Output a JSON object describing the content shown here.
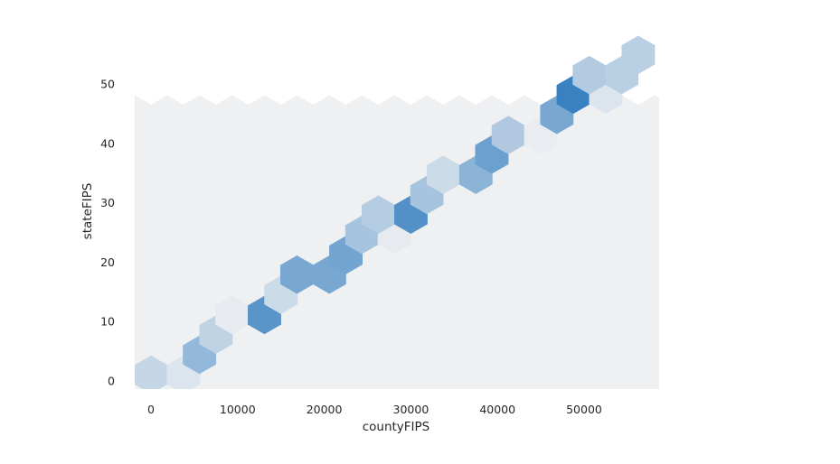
{
  "chart_data": {
    "type": "hexbin",
    "xlabel": "countyFIPS",
    "ylabel": "stateFIPS",
    "xlim": [
      -2000,
      58000
    ],
    "ylim": [
      -1,
      57
    ],
    "x_ticks": [
      0,
      10000,
      20000,
      30000,
      40000,
      50000
    ],
    "y_ticks": [
      0,
      10,
      20,
      30,
      40,
      50
    ],
    "x_tick_labels": [
      "0",
      "10000",
      "20000",
      "30000",
      "40000",
      "50000"
    ],
    "y_tick_labels": [
      "0",
      "10",
      "20",
      "30",
      "40",
      "50"
    ],
    "grid": false,
    "colormap": {
      "low": "#eff0f2",
      "high": "#2f7bbd"
    },
    "background_color": "#eff0f2",
    "bins": [
      {
        "x": 0,
        "y": 1.05,
        "intensity": 0.22
      },
      {
        "x": 3750,
        "y": 1.05,
        "intensity": 0.1
      },
      {
        "x": 5600,
        "y": 4.4,
        "intensity": 0.48
      },
      {
        "x": 7500,
        "y": 7.8,
        "intensity": 0.25
      },
      {
        "x": 9350,
        "y": 11.1,
        "intensity": 0.04
      },
      {
        "x": 13100,
        "y": 11.1,
        "intensity": 0.78
      },
      {
        "x": 15000,
        "y": 14.5,
        "intensity": 0.18
      },
      {
        "x": 16850,
        "y": 17.9,
        "intensity": 0.62
      },
      {
        "x": 20600,
        "y": 17.9,
        "intensity": 0.62
      },
      {
        "x": 22500,
        "y": 21.2,
        "intensity": 0.64
      },
      {
        "x": 24350,
        "y": 24.6,
        "intensity": 0.38
      },
      {
        "x": 28100,
        "y": 24.6,
        "intensity": 0.04
      },
      {
        "x": 26250,
        "y": 28.0,
        "intensity": 0.3
      },
      {
        "x": 30000,
        "y": 28.0,
        "intensity": 0.82
      },
      {
        "x": 31850,
        "y": 31.3,
        "intensity": 0.38
      },
      {
        "x": 33750,
        "y": 34.7,
        "intensity": 0.18
      },
      {
        "x": 37500,
        "y": 34.7,
        "intensity": 0.52
      },
      {
        "x": 39350,
        "y": 38.1,
        "intensity": 0.68
      },
      {
        "x": 41250,
        "y": 41.4,
        "intensity": 0.33
      },
      {
        "x": 45000,
        "y": 41.4,
        "intensity": 0.03
      },
      {
        "x": 46850,
        "y": 44.8,
        "intensity": 0.62
      },
      {
        "x": 48750,
        "y": 48.2,
        "intensity": 0.95
      },
      {
        "x": 52500,
        "y": 48.2,
        "intensity": 0.1
      },
      {
        "x": 50600,
        "y": 51.5,
        "intensity": 0.32
      },
      {
        "x": 54350,
        "y": 51.5,
        "intensity": 0.28
      },
      {
        "x": 56250,
        "y": 54.9,
        "intensity": 0.28
      }
    ]
  }
}
